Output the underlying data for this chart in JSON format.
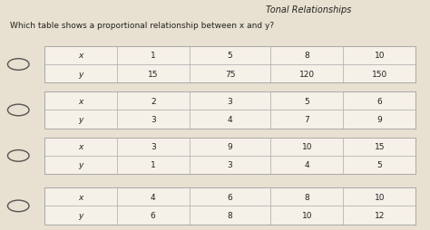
{
  "title_top": "Tonal Relationships",
  "question": "Which table shows a proportional relationship between x and y?",
  "bg_color": "#d4e8d0",
  "tables": [
    {
      "rows": [
        [
          "x",
          "1",
          "5",
          "8",
          "10"
        ],
        [
          "y",
          "15",
          "75",
          "120",
          "150"
        ]
      ]
    },
    {
      "rows": [
        [
          "x",
          "2",
          "3",
          "5",
          "6"
        ],
        [
          "y",
          "3",
          "4",
          "7",
          "9"
        ]
      ]
    },
    {
      "rows": [
        [
          "x",
          "3",
          "9",
          "10",
          "15"
        ],
        [
          "y",
          "1",
          "3",
          "4",
          "5"
        ]
      ]
    },
    {
      "rows": [
        [
          "x",
          "4",
          "6",
          "8",
          "10"
        ],
        [
          "y",
          "6",
          "8",
          "10",
          "12"
        ]
      ]
    }
  ],
  "paper_bg": "#e8e0d0",
  "table_bg": "#f5f0e8",
  "line_color": "#aaaaaa",
  "text_color": "#222222",
  "radio_color": "#555555"
}
